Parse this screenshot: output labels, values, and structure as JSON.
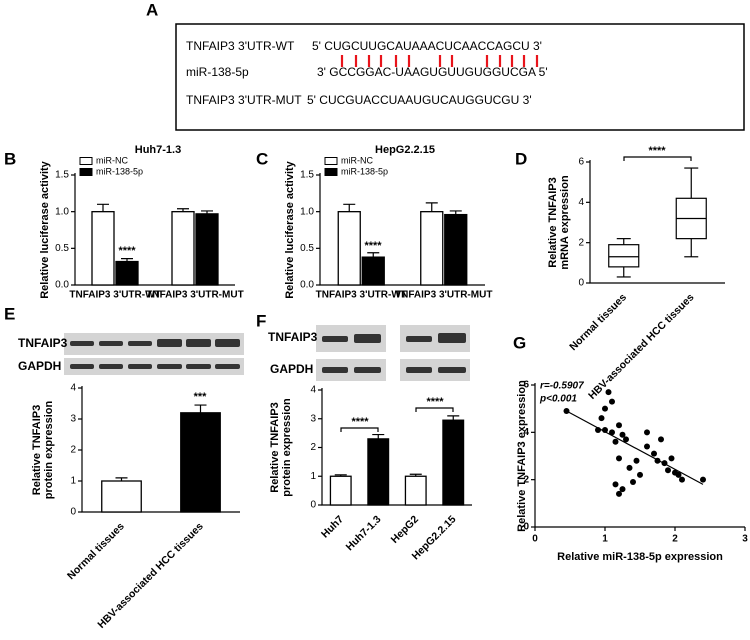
{
  "panel_labels": [
    "A",
    "B",
    "C",
    "D",
    "E",
    "F",
    "G"
  ],
  "sequence_panel": {
    "rows": [
      {
        "label": "TNFAIP3 3'UTR-WT",
        "seq": "5' CUGCUUGCAUAAACUCAACCAGCU 3'"
      },
      {
        "label": "miR-138-5p",
        "seq": "3' GCCGGAC-UAAGUGUUGUGGUCGA 5'"
      },
      {
        "label": "TNFAIP3 3'UTR-MUT",
        "seq": "5' CUCGUACCUAAUGUCAUGGUCGU 3'"
      }
    ]
  },
  "blots": {
    "E": [
      "TNFAIP3",
      "GAPDH"
    ],
    "F": [
      "TNFAIP3",
      "GAPDH"
    ]
  },
  "chart_data": [
    {
      "type": "bar",
      "title": "Huh7-1.3",
      "y_label": "Relative luciferase activity",
      "categories": [
        "TNFAIP3 3'UTR-WT",
        "TNFAIP3 3'UTR-MUT"
      ],
      "series": [
        {
          "name": "miR-NC",
          "color": "#ffffff",
          "values": [
            1.0,
            1.0
          ],
          "errors": [
            0.1,
            0.04
          ]
        },
        {
          "name": "miR-138-5p",
          "color": "#000000",
          "values": [
            0.32,
            0.97
          ],
          "errors": [
            0.04,
            0.04
          ]
        }
      ],
      "ylim": [
        0,
        1.5
      ],
      "yticks": [
        {
          "value": 0,
          "label": "0.0"
        },
        0.5,
        {
          "value": 1,
          "label": "1.0"
        },
        1.5
      ],
      "annotations": [
        "****"
      ]
    },
    {
      "type": "bar",
      "title": "HepG2.2.15",
      "y_label": "Relative luciferase activity",
      "categories": [
        "TNFAIP3 3'UTR-WT",
        "TNFAIP3 3'UTR-MUT"
      ],
      "series": [
        {
          "name": "miR-NC",
          "color": "#ffffff",
          "values": [
            1.0,
            1.0
          ],
          "errors": [
            0.1,
            0.12
          ]
        },
        {
          "name": "miR-138-5p",
          "color": "#000000",
          "values": [
            0.38,
            0.96
          ],
          "errors": [
            0.06,
            0.05
          ]
        }
      ],
      "ylim": [
        0,
        1.5
      ],
      "yticks": [
        {
          "value": 0,
          "label": "0.0"
        },
        0.5,
        {
          "value": 1,
          "label": "1.0"
        },
        1.5
      ],
      "annotations": [
        "****"
      ]
    },
    {
      "type": "box",
      "y_label": [
        "Relative TNFAIP3",
        "mRNA expression"
      ],
      "categories": [
        "Normal tissues",
        "HBV-associated HCC tissues"
      ],
      "boxes": [
        {
          "min": 0.3,
          "q1": 0.8,
          "median": 1.3,
          "q3": 1.9,
          "max": 2.2
        },
        {
          "min": 1.3,
          "q1": 2.2,
          "median": 3.2,
          "q3": 4.2,
          "max": 5.7
        }
      ],
      "ylim": [
        0,
        6
      ],
      "yticks": [
        0,
        2,
        4,
        6
      ],
      "annotations": [
        "****"
      ]
    },
    {
      "type": "bar",
      "y_label": [
        "Relative TNFAIP3",
        "protein expression"
      ],
      "categories": [
        "Normal tissues",
        "HBV-associated HCC tissues"
      ],
      "values": [
        1.0,
        3.2
      ],
      "errors": [
        0.1,
        0.25
      ],
      "colors": [
        "#ffffff",
        "#000000"
      ],
      "ylim": [
        0,
        4
      ],
      "yticks": [
        0,
        1,
        2,
        3,
        4
      ],
      "annotations": [
        "***"
      ]
    },
    {
      "type": "bar",
      "y_label": [
        "Relative TNFAIP3",
        "protein expression"
      ],
      "categories": [
        "Huh7",
        "Huh7-1.3",
        "HepG2",
        "HepG2.2.15"
      ],
      "values": [
        1.0,
        2.3,
        1.0,
        2.95
      ],
      "errors": [
        0.05,
        0.15,
        0.07,
        0.15
      ],
      "colors": [
        "#ffffff",
        "#000000",
        "#ffffff",
        "#000000"
      ],
      "ylim": [
        0,
        4
      ],
      "yticks": [
        0,
        1,
        2,
        3,
        4
      ],
      "annotations": [
        "****",
        "****"
      ]
    },
    {
      "type": "scatter",
      "x_label": "Relative miR-138-5p expression",
      "y_label": "Relative TNFAIP3 expression",
      "x": [
        0.45,
        0.9,
        0.95,
        1.0,
        1.05,
        1.1,
        1.0,
        1.1,
        1.15,
        1.2,
        1.25,
        1.3,
        1.2,
        1.15,
        1.2,
        1.25,
        1.35,
        1.45,
        1.5,
        1.4,
        1.6,
        1.7,
        1.75,
        1.85,
        1.9,
        2.0,
        2.05,
        1.95,
        2.1,
        2.4,
        1.6,
        1.8
      ],
      "y": [
        4.9,
        4.1,
        4.6,
        5.0,
        5.7,
        5.3,
        4.1,
        4.0,
        3.6,
        4.3,
        3.9,
        3.7,
        2.9,
        1.8,
        1.4,
        1.6,
        2.5,
        2.8,
        2.2,
        1.9,
        4.0,
        3.1,
        2.8,
        2.7,
        2.4,
        2.3,
        2.2,
        2.9,
        2.0,
        2.0,
        3.4,
        3.7
      ],
      "color": "#000000",
      "fit_line": {
        "x": [
          0.45,
          2.4
        ],
        "y": [
          4.9,
          1.8
        ]
      },
      "xlim": [
        0,
        3
      ],
      "xticks": [
        0,
        1,
        2,
        3
      ],
      "ylim": [
        0,
        6
      ],
      "yticks": [
        0,
        2,
        4,
        6
      ],
      "annotations": [
        "r=-0.5907",
        "p<0.001"
      ]
    }
  ]
}
